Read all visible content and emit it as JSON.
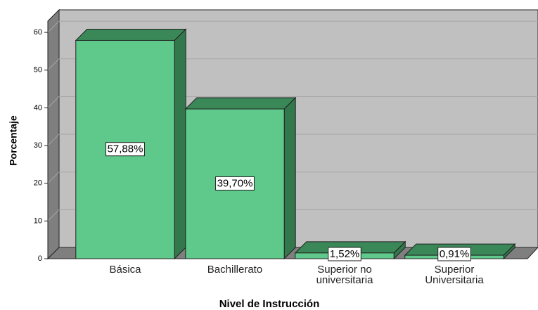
{
  "chart_data": {
    "type": "bar",
    "x_label": "Nivel de Instrucción",
    "y_label": "Porcentaje",
    "categories": [
      "Básica",
      "Bachillerato",
      "Superior no universitaria",
      "Superior Universitaria"
    ],
    "values": [
      57.88,
      39.7,
      1.52,
      0.91
    ],
    "value_labels": [
      "57,88%",
      "39,70%",
      "1,52%",
      "0,91%"
    ],
    "color": "#5ec98a",
    "ylim": [
      0,
      63
    ],
    "yticks": [
      0,
      10,
      20,
      30,
      40,
      50,
      60
    ],
    "grid": true
  }
}
